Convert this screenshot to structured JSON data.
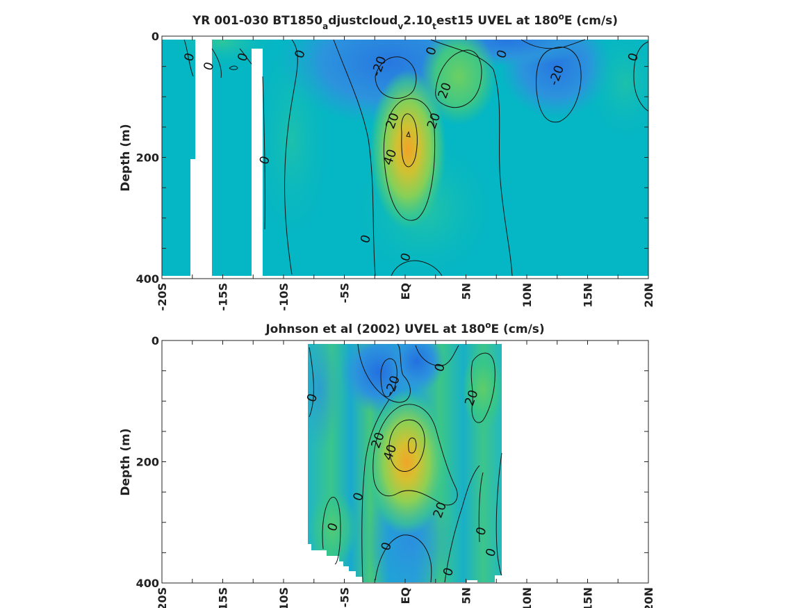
{
  "chart_data": [
    {
      "type": "heatmap",
      "title_parts": [
        "YR 001-030 BT1850",
        "a",
        "djustcloud",
        "v",
        "2.10",
        "t",
        "est15 UVEL at 180",
        "o",
        "E (cm/s)"
      ],
      "ylabel": "Depth (m)",
      "xlabel": "",
      "x_ticks": [
        "-20S",
        "-15S",
        "-10S",
        "-5S",
        "EQ",
        "5N",
        "10N",
        "15N",
        "20N"
      ],
      "x_tick_values": [
        -20,
        -15,
        -10,
        -5,
        0,
        5,
        10,
        15,
        20
      ],
      "y_ticks": [
        "0",
        "200",
        "400"
      ],
      "y_tick_values": [
        0,
        200,
        400
      ],
      "xlim": [
        -20,
        20
      ],
      "ylim": [
        0,
        400
      ],
      "y_reversed": true,
      "units": "cm/s",
      "colormap": [
        "#1f6fe0",
        "#2b9bd8",
        "#04b7c4",
        "#34c58a",
        "#7fd05a",
        "#d2c232",
        "#f0a02a"
      ],
      "color_range": [
        -40,
        60
      ],
      "missing_data_gaps_lat": [
        [
          -17.5,
          -16
        ],
        [
          -12.5,
          -11.7
        ]
      ],
      "cores": [
        {
          "lat": 0,
          "depth": 180,
          "speed": 45,
          "label": "eastward core"
        },
        {
          "lat": 5,
          "depth": 90,
          "speed": 22,
          "label": "north eastward"
        },
        {
          "lat": -3.5,
          "depth": 20,
          "speed": -22,
          "label": "surface westward"
        },
        {
          "lat": 12,
          "depth": 60,
          "speed": -22,
          "label": "north westward"
        }
      ],
      "contour_labels": [
        {
          "text": "0",
          "lat": -17.7,
          "depth": 35
        },
        {
          "text": "0",
          "lat": -16.1,
          "depth": 50
        },
        {
          "text": "0",
          "lat": -13.3,
          "depth": 35
        },
        {
          "text": "0",
          "lat": -8.6,
          "depth": 30
        },
        {
          "text": "-20",
          "lat": -2.1,
          "depth": 50
        },
        {
          "text": "0",
          "lat": 2.2,
          "depth": 25
        },
        {
          "text": "0",
          "lat": 8,
          "depth": 30
        },
        {
          "text": "-20",
          "lat": 12.5,
          "depth": 65
        },
        {
          "text": "0",
          "lat": 18.8,
          "depth": 35
        },
        {
          "text": "20",
          "lat": 3.3,
          "depth": 90
        },
        {
          "text": "20",
          "lat": -1,
          "depth": 140
        },
        {
          "text": "20",
          "lat": 2.4,
          "depth": 140
        },
        {
          "text": "40",
          "lat": -1.2,
          "depth": 200
        },
        {
          "text": "0",
          "lat": -11.5,
          "depth": 205
        },
        {
          "text": "0",
          "lat": -3.2,
          "depth": 335
        },
        {
          "text": "0",
          "lat": 0.1,
          "depth": 365
        }
      ]
    },
    {
      "type": "heatmap",
      "title_parts": [
        "Johnson et al (2002) UVEL at 180",
        "o",
        "E (cm/s)"
      ],
      "ylabel": "Depth (m)",
      "xlabel": "",
      "x_ticks": [
        "-20S",
        "-15S",
        "-10S",
        "-5S",
        "EQ",
        "5N",
        "10N",
        "15N",
        "20N"
      ],
      "x_tick_values": [
        -20,
        -15,
        -10,
        -5,
        0,
        5,
        10,
        15,
        20
      ],
      "y_ticks": [
        "0",
        "200",
        "400"
      ],
      "y_tick_values": [
        0,
        200,
        400
      ],
      "xlim": [
        -20,
        20
      ],
      "ylim": [
        0,
        400
      ],
      "y_reversed": true,
      "units": "cm/s",
      "data_extent_lat": [
        -8,
        8
      ],
      "cores": [
        {
          "lat": 0.5,
          "depth": 170,
          "speed": 50,
          "label": "eastward core"
        },
        {
          "lat": -2.5,
          "depth": 40,
          "speed": -25,
          "label": "surface westward"
        },
        {
          "lat": 6,
          "depth": 70,
          "speed": 22,
          "label": "north eastward"
        },
        {
          "lat": 0,
          "depth": 360,
          "speed": -15,
          "label": "deep westward"
        }
      ],
      "contour_labels": [
        {
          "text": "0",
          "lat": -7.6,
          "depth": 95
        },
        {
          "text": "-20",
          "lat": -1,
          "depth": 75
        },
        {
          "text": "0",
          "lat": 2.9,
          "depth": 45
        },
        {
          "text": "20",
          "lat": 5.5,
          "depth": 95
        },
        {
          "text": "20",
          "lat": -2.2,
          "depth": 165
        },
        {
          "text": "40",
          "lat": -1.2,
          "depth": 185
        },
        {
          "text": "0",
          "lat": -3.8,
          "depth": 258
        },
        {
          "text": "20",
          "lat": 2.9,
          "depth": 280
        },
        {
          "text": "0",
          "lat": -5.9,
          "depth": 308
        },
        {
          "text": "0",
          "lat": 6.3,
          "depth": 315
        },
        {
          "text": "0",
          "lat": -1.5,
          "depth": 340
        },
        {
          "text": "0",
          "lat": 7.1,
          "depth": 350
        },
        {
          "text": "0",
          "lat": 3.6,
          "depth": 382
        }
      ]
    }
  ]
}
